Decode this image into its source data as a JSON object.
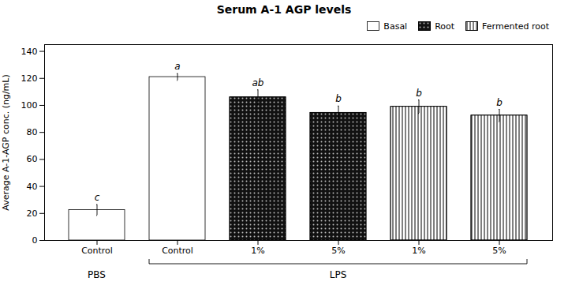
{
  "chart_data": {
    "type": "bar",
    "title": "Serum A-1 AGP levels",
    "ylabel": "Average A-1-AGP conc. (ng/mL)",
    "categories": [
      "Control",
      "Control",
      "1%",
      "5%",
      "1%",
      "5%"
    ],
    "series": [
      {
        "name": "Basal",
        "color": "#ffffff",
        "values": [
          22.5,
          121.0,
          null,
          null,
          null,
          null
        ],
        "errors": [
          4.0,
          2.5,
          null,
          null,
          null,
          null
        ],
        "letters": [
          "c",
          "a",
          null,
          null,
          null,
          null
        ]
      },
      {
        "name": "Root",
        "color": "#111111",
        "values": [
          null,
          null,
          106.0,
          94.5,
          null,
          null
        ],
        "errors": [
          null,
          null,
          5.5,
          5.0,
          null,
          null
        ],
        "letters": [
          null,
          null,
          "ab",
          "b",
          null,
          null
        ]
      },
      {
        "name": "Fermented root",
        "color": "#ffffff",
        "values": [
          null,
          null,
          null,
          null,
          99.0,
          92.5
        ],
        "errors": [
          null,
          null,
          null,
          null,
          5.0,
          4.5
        ],
        "letters": [
          null,
          null,
          null,
          null,
          "b",
          "b"
        ]
      }
    ],
    "groups": [
      {
        "name": "PBS",
        "size": 1
      },
      {
        "name": "LPS",
        "size": 5
      }
    ],
    "ylim": [
      0,
      145
    ],
    "yticks": [
      0,
      20,
      40,
      60,
      80,
      100,
      120,
      140
    ],
    "grid": false,
    "legend": "upper right"
  }
}
